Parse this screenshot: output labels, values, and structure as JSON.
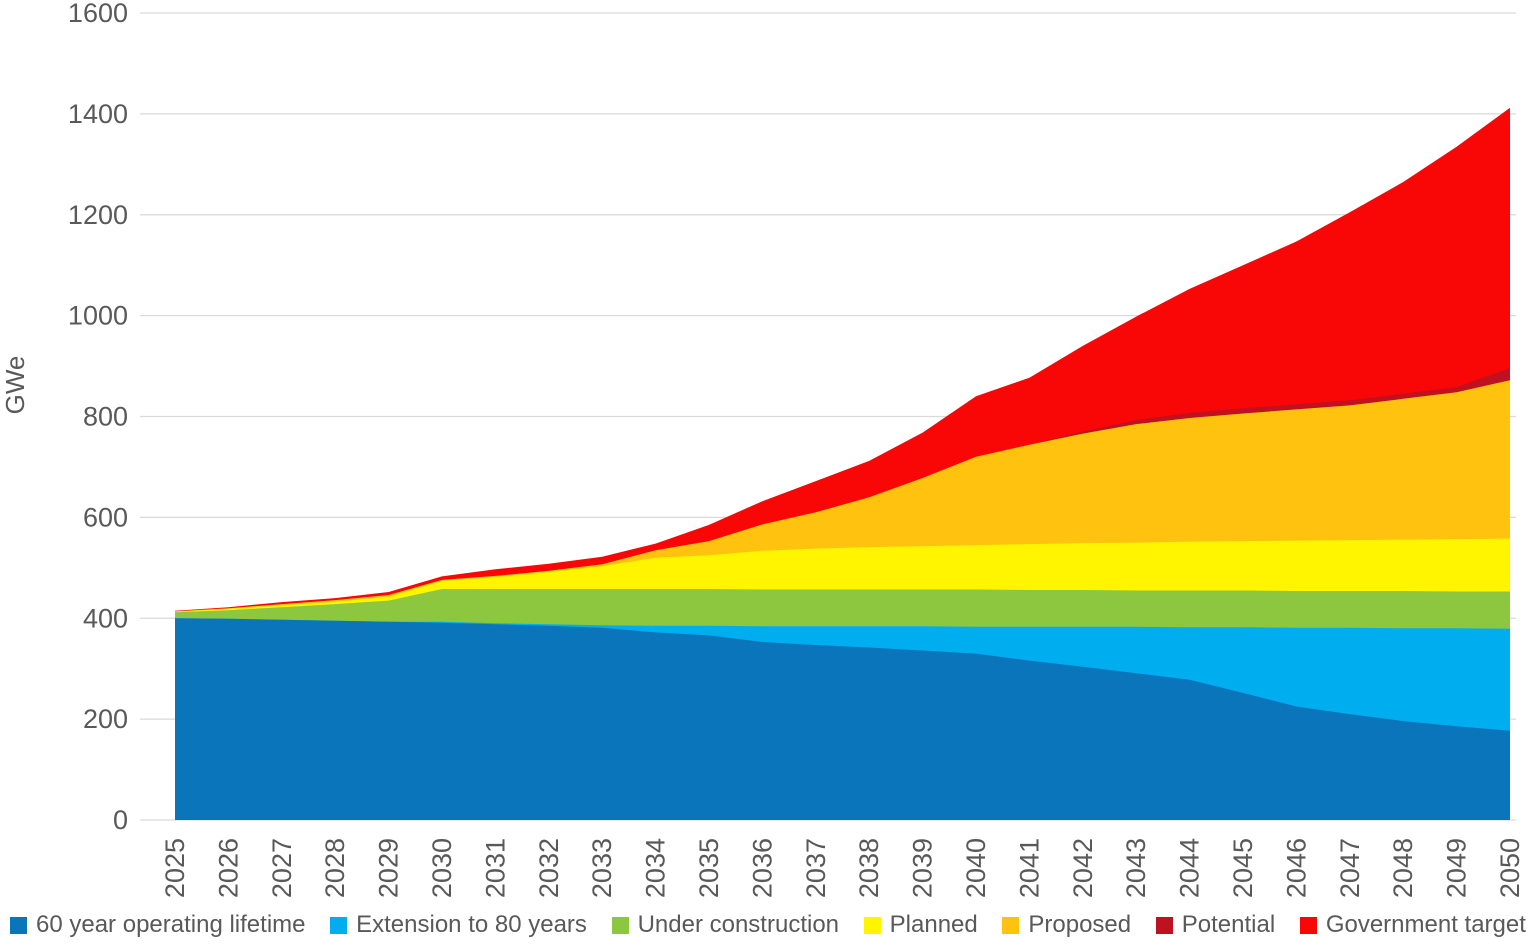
{
  "chart_data": {
    "type": "area",
    "stacked": true,
    "title": "",
    "xlabel": "",
    "ylabel": "GWe",
    "ylim": [
      0,
      1600
    ],
    "yticks": [
      0,
      200,
      400,
      600,
      800,
      1000,
      1200,
      1400,
      1600
    ],
    "grid": "horizontal",
    "legend_position": "bottom",
    "axis_text_color": "#595959",
    "gridline_color": "#D9D9D9",
    "x": [
      2025,
      2026,
      2027,
      2028,
      2029,
      2030,
      2031,
      2032,
      2033,
      2034,
      2035,
      2036,
      2037,
      2038,
      2039,
      2040,
      2041,
      2042,
      2043,
      2044,
      2045,
      2046,
      2047,
      2048,
      2049,
      2050
    ],
    "series": [
      {
        "name": "60 year operating lifetime",
        "color": "#0B75BC",
        "values": [
          400,
          399,
          397,
          395,
          393,
          391,
          388,
          385,
          381,
          372,
          366,
          353,
          347,
          342,
          336,
          330,
          316,
          304,
          291,
          278,
          252,
          225,
          210,
          196,
          186,
          177
        ]
      },
      {
        "name": "Extension to 80 years",
        "color": "#00AEEF",
        "values": [
          0,
          0,
          0,
          0,
          0,
          2,
          2,
          3,
          5,
          13,
          19,
          31,
          37,
          42,
          48,
          53,
          67,
          79,
          92,
          104,
          130,
          156,
          171,
          184,
          194,
          202
        ]
      },
      {
        "name": "Under construction",
        "color": "#8DC63F",
        "values": [
          12,
          17,
          25,
          33,
          42,
          65,
          68,
          70,
          72,
          73,
          73,
          73,
          73,
          73,
          73,
          74,
          73,
          73,
          72,
          73,
          73,
          73,
          73,
          74,
          73,
          74
        ]
      },
      {
        "name": "Planned",
        "color": "#FFF500",
        "values": [
          1,
          3,
          4,
          5,
          8,
          16,
          24,
          34,
          45,
          62,
          67,
          77,
          81,
          84,
          86,
          88,
          91,
          93,
          95,
          97,
          98,
          100,
          101,
          102,
          104,
          105
        ]
      },
      {
        "name": "Proposed",
        "color": "#FFC20E",
        "values": [
          1,
          1,
          2,
          3,
          3,
          2,
          2,
          2,
          4,
          15,
          28,
          52,
          72,
          99,
          135,
          175,
          197,
          217,
          235,
          245,
          253,
          260,
          267,
          279,
          291,
          314
        ]
      },
      {
        "name": "Potential",
        "color": "#BE1220",
        "values": [
          0,
          0,
          0,
          0,
          0,
          0,
          0,
          0,
          0,
          0,
          0,
          0,
          0,
          0,
          0,
          0,
          0,
          4,
          8,
          10,
          10,
          10,
          10,
          10,
          10,
          24
        ]
      },
      {
        "name": "Government target",
        "color": "#F90606",
        "values": [
          1,
          2,
          4,
          4,
          6,
          7,
          13,
          14,
          15,
          13,
          32,
          46,
          62,
          72,
          90,
          120,
          133,
          170,
          205,
          246,
          284,
          323,
          373,
          420,
          477,
          516
        ]
      }
    ]
  }
}
